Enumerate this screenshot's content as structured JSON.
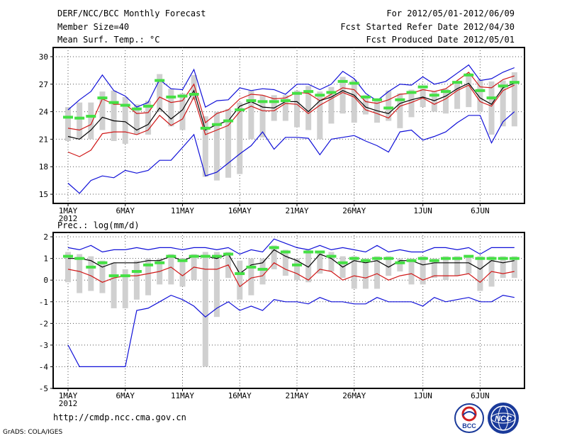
{
  "header": {
    "title": "DERF/NCC/BCC Monthly Forecast",
    "member_size": "Member Size=40",
    "variable": "Mean Surf. Temp.: °C",
    "period": "For 2012/05/01-2012/06/09",
    "fcst_started": "Fcst Started Refer Date 2012/04/30",
    "fcst_produced": "Fcst Produced Date 2012/05/01"
  },
  "footer": {
    "url": "http://cmdp.ncc.cma.gov.cn",
    "grads": "GrADS: COLA/IGES",
    "logo_bcc": "BCC",
    "logo_ncc": "NCC"
  },
  "colors": {
    "max_line": "#1010d8",
    "min_line": "#1010d8",
    "upper_line": "#d01818",
    "lower_line": "#d01818",
    "mean_line": "#000000",
    "median_marker": "#44e044",
    "spread_bar": "#d0d0d0",
    "grid": "#555555"
  },
  "chart_data": [
    {
      "type": "line",
      "title": "Mean Surf. Temp.: °C",
      "ylim": [
        14,
        31
      ],
      "yticks": [
        15,
        18,
        21,
        24,
        27,
        30
      ],
      "x_tick_labels": [
        "1MAY",
        "6MAY",
        "11MAY",
        "16MAY",
        "21MAY",
        "26MAY",
        "1JUN",
        "6JUN"
      ],
      "x_tick_days": [
        1,
        6,
        11,
        16,
        21,
        26,
        32,
        37
      ],
      "x_year_label": "2012",
      "x": [
        1,
        2,
        3,
        4,
        5,
        6,
        7,
        8,
        9,
        10,
        11,
        12,
        13,
        14,
        15,
        16,
        17,
        18,
        19,
        20,
        21,
        22,
        23,
        24,
        25,
        26,
        27,
        28,
        29,
        30,
        31,
        32,
        33,
        34,
        35,
        36,
        37,
        38,
        39,
        40
      ],
      "series": [
        {
          "name": "max",
          "values": [
            24.2,
            25.3,
            26.2,
            28.0,
            26.3,
            25.7,
            24.5,
            25.0,
            27.5,
            26.5,
            26.4,
            28.6,
            24.5,
            25.2,
            25.3,
            26.6,
            26.3,
            26.5,
            26.4,
            25.9,
            27.0,
            27.0,
            26.4,
            27.0,
            28.4,
            27.6,
            26.0,
            25.2,
            26.2,
            27.0,
            26.9,
            27.8,
            27.0,
            27.3,
            28.2,
            29.1,
            27.4,
            27.6,
            28.3,
            28.8
          ]
        },
        {
          "name": "upper",
          "values": [
            22.2,
            22.0,
            22.6,
            25.4,
            24.8,
            24.8,
            23.8,
            23.9,
            25.6,
            25.0,
            25.2,
            27.0,
            22.8,
            23.8,
            24.2,
            25.4,
            25.9,
            25.8,
            25.4,
            25.5,
            26.1,
            26.0,
            25.2,
            25.9,
            26.6,
            26.4,
            25.1,
            24.9,
            25.3,
            25.9,
            26.0,
            26.4,
            26.2,
            26.5,
            27.4,
            28.3,
            26.7,
            26.6,
            27.5,
            27.9
          ]
        },
        {
          "name": "mean",
          "values": [
            21.3,
            21.0,
            22.0,
            23.4,
            23.0,
            22.9,
            22.0,
            22.6,
            24.4,
            23.2,
            24.2,
            26.3,
            22.0,
            22.6,
            23.0,
            24.6,
            25.1,
            24.5,
            24.4,
            25.1,
            25.1,
            24.0,
            25.2,
            25.6,
            26.3,
            25.8,
            24.5,
            24.1,
            23.8,
            24.9,
            25.3,
            25.6,
            25.2,
            25.7,
            26.5,
            27.1,
            25.5,
            24.8,
            26.6,
            27.1
          ]
        },
        {
          "name": "lower",
          "values": [
            19.6,
            19.1,
            19.8,
            21.6,
            21.8,
            21.8,
            21.5,
            22.0,
            23.6,
            22.5,
            23.2,
            25.6,
            21.5,
            22.0,
            22.5,
            24.0,
            24.6,
            24.1,
            24.1,
            24.9,
            24.8,
            23.8,
            24.7,
            25.4,
            26.1,
            25.6,
            24.2,
            23.8,
            23.3,
            24.6,
            25.0,
            25.5,
            24.8,
            25.4,
            26.3,
            26.9,
            25.1,
            24.6,
            26.3,
            26.9
          ]
        },
        {
          "name": "min",
          "values": [
            16.2,
            15.1,
            16.5,
            17.0,
            16.8,
            17.6,
            17.3,
            17.6,
            18.7,
            18.7,
            20.1,
            21.5,
            17.0,
            17.4,
            18.4,
            19.4,
            20.3,
            21.8,
            19.9,
            21.2,
            21.2,
            21.1,
            19.3,
            21.0,
            21.2,
            21.4,
            20.8,
            20.3,
            19.6,
            21.8,
            22.0,
            20.9,
            21.3,
            21.8,
            22.8,
            23.6,
            23.6,
            20.6,
            22.9,
            24.0
          ]
        },
        {
          "name": "median",
          "values": [
            23.4,
            23.3,
            23.5,
            25.5,
            25.0,
            24.7,
            24.3,
            24.6,
            27.4,
            25.6,
            25.7,
            25.9,
            22.2,
            22.6,
            23.0,
            24.2,
            25.2,
            25.1,
            25.1,
            25.2,
            26.0,
            26.2,
            25.8,
            26.1,
            27.3,
            27.1,
            25.6,
            25.3,
            24.4,
            25.3,
            26.1,
            26.7,
            25.8,
            26.2,
            27.2,
            28.0,
            26.3,
            25.5,
            26.8,
            27.2
          ]
        },
        {
          "name": "spread_low",
          "values": [
            20.8,
            21.0,
            21.0,
            22.0,
            20.8,
            20.5,
            21.5,
            21.5,
            24.0,
            22.4,
            22.0,
            25.3,
            16.9,
            16.5,
            16.8,
            17.2,
            21.0,
            21.2,
            23.0,
            23.0,
            22.3,
            22.0,
            21.0,
            22.7,
            23.8,
            22.8,
            23.7,
            22.8,
            23.0,
            22.2,
            23.4,
            24.5,
            24.0,
            23.8,
            24.3,
            24.5,
            24.0,
            21.5,
            22.4,
            22.4
          ]
        },
        {
          "name": "spread_high",
          "values": [
            24.5,
            25.0,
            25.0,
            26.2,
            26.3,
            25.6,
            24.8,
            25.2,
            28.1,
            26.5,
            26.0,
            28.0,
            23.5,
            24.0,
            24.3,
            25.0,
            26.3,
            25.8,
            25.8,
            25.8,
            26.3,
            26.8,
            26.2,
            26.7,
            27.8,
            27.5,
            25.8,
            25.4,
            26.3,
            26.0,
            26.4,
            26.5,
            26.2,
            26.5,
            27.3,
            28.2,
            27.5,
            27.3,
            27.4,
            28.3
          ]
        }
      ]
    },
    {
      "type": "line",
      "title": "Prec.: log(mm/d)",
      "ylim": [
        -5,
        2.2
      ],
      "yticks": [
        -5,
        -4,
        -3,
        -2,
        -1,
        0,
        1,
        2
      ],
      "x_tick_labels": [
        "1MAY",
        "6MAY",
        "11MAY",
        "16MAY",
        "21MAY",
        "26MAY",
        "1JUN",
        "6JUN"
      ],
      "x_tick_days": [
        1,
        6,
        11,
        16,
        21,
        26,
        32,
        37
      ],
      "x_year_label": "2012",
      "x": [
        1,
        2,
        3,
        4,
        5,
        6,
        7,
        8,
        9,
        10,
        11,
        12,
        13,
        14,
        15,
        16,
        17,
        18,
        19,
        20,
        21,
        22,
        23,
        24,
        25,
        26,
        27,
        28,
        29,
        30,
        31,
        32,
        33,
        34,
        35,
        36,
        37,
        38,
        39,
        40
      ],
      "series": [
        {
          "name": "max",
          "values": [
            1.5,
            1.4,
            1.6,
            1.3,
            1.4,
            1.4,
            1.5,
            1.4,
            1.5,
            1.5,
            1.4,
            1.5,
            1.5,
            1.4,
            1.5,
            1.2,
            1.4,
            1.3,
            1.9,
            1.7,
            1.5,
            1.4,
            1.6,
            1.4,
            1.5,
            1.4,
            1.3,
            1.6,
            1.3,
            1.4,
            1.3,
            1.3,
            1.5,
            1.5,
            1.4,
            1.5,
            1.2,
            1.5,
            1.5,
            1.5
          ]
        },
        {
          "name": "mean",
          "values": [
            1.0,
            1.0,
            0.9,
            0.6,
            0.8,
            0.8,
            0.8,
            0.9,
            0.9,
            1.1,
            0.9,
            1.1,
            1.1,
            1.0,
            1.2,
            0.3,
            0.7,
            0.8,
            1.4,
            1.1,
            0.9,
            0.6,
            1.2,
            1.0,
            0.6,
            0.9,
            0.8,
            0.9,
            0.6,
            0.9,
            0.9,
            0.7,
            0.8,
            0.8,
            0.8,
            0.8,
            0.5,
            0.9,
            0.8,
            0.9
          ]
        },
        {
          "name": "lower",
          "values": [
            0.5,
            0.4,
            0.2,
            -0.1,
            0.1,
            0.2,
            0.2,
            0.3,
            0.4,
            0.6,
            0.2,
            0.6,
            0.5,
            0.5,
            0.7,
            -0.3,
            0.1,
            0.2,
            0.8,
            0.5,
            0.3,
            0.0,
            0.5,
            0.4,
            0.0,
            0.2,
            0.1,
            0.3,
            0.0,
            0.2,
            0.3,
            0.0,
            0.2,
            0.2,
            0.2,
            0.3,
            -0.1,
            0.4,
            0.3,
            0.4
          ]
        },
        {
          "name": "min",
          "values": [
            -3.0,
            -4.0,
            -4.0,
            -4.0,
            -4.0,
            -4.0,
            -1.4,
            -1.3,
            -1.0,
            -0.7,
            -0.9,
            -1.2,
            -1.7,
            -1.3,
            -1.0,
            -1.4,
            -1.2,
            -1.4,
            -0.9,
            -1.0,
            -1.0,
            -1.1,
            -0.8,
            -1.0,
            -1.0,
            -1.1,
            -1.1,
            -0.8,
            -1.0,
            -1.0,
            -1.0,
            -1.2,
            -0.8,
            -1.0,
            -0.9,
            -0.8,
            -1.0,
            -1.0,
            -0.7,
            -0.8
          ]
        },
        {
          "name": "median",
          "values": [
            1.1,
            1.0,
            0.6,
            0.8,
            0.2,
            0.2,
            0.4,
            0.7,
            0.8,
            1.1,
            0.9,
            1.1,
            1.1,
            1.1,
            1.2,
            0.3,
            0.6,
            0.5,
            1.5,
            1.3,
            0.7,
            1.3,
            1.3,
            1.1,
            0.8,
            1.0,
            0.9,
            1.0,
            1.0,
            0.8,
            0.9,
            1.0,
            0.9,
            1.0,
            1.0,
            1.1,
            1.0,
            1.0,
            1.0,
            1.0
          ]
        },
        {
          "name": "spread_low",
          "values": [
            -0.1,
            -0.6,
            -0.5,
            -0.6,
            -1.3,
            -1.3,
            -0.9,
            -0.7,
            -0.2,
            -0.2,
            -0.3,
            0.0,
            -4.0,
            -1.7,
            0.1,
            -0.9,
            -0.7,
            -0.2,
            0.5,
            0.2,
            0.0,
            -0.1,
            0.3,
            0.4,
            0.1,
            -0.4,
            -0.4,
            -0.4,
            0.2,
            0.4,
            -0.2,
            -0.2,
            0.1,
            0.0,
            0.2,
            0.3,
            -0.5,
            -0.3,
            0.1,
            0.1
          ]
        },
        {
          "name": "spread_high",
          "values": [
            1.3,
            1.2,
            1.1,
            0.9,
            0.8,
            0.5,
            0.9,
            1.0,
            1.0,
            1.2,
            1.0,
            1.2,
            1.3,
            1.3,
            1.3,
            0.9,
            1.0,
            1.0,
            1.6,
            1.4,
            1.0,
            1.4,
            1.3,
            1.3,
            1.1,
            1.1,
            1.0,
            1.1,
            1.1,
            1.0,
            1.0,
            1.1,
            1.0,
            1.1,
            1.1,
            1.1,
            1.1,
            1.1,
            1.1,
            1.1
          ]
        }
      ]
    }
  ]
}
